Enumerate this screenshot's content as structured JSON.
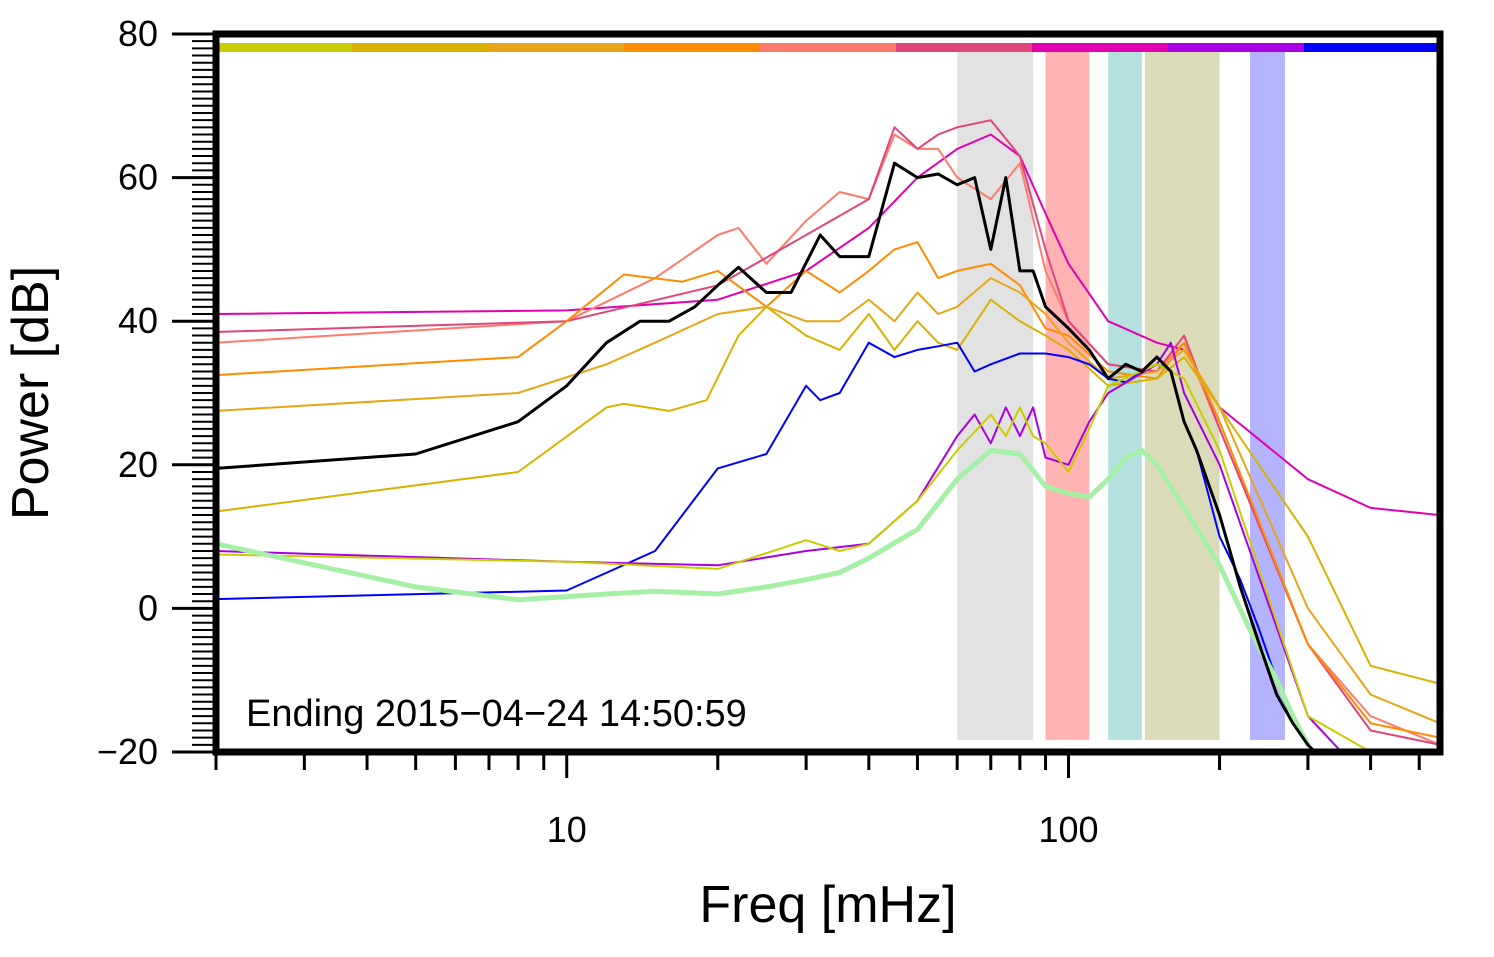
{
  "chart_data": {
    "type": "line",
    "x_scale": "log",
    "xlabel": "Freq [mHz]",
    "ylabel": "Power [dB]",
    "xlim": [
      2,
      550
    ],
    "ylim": [
      -20,
      80
    ],
    "x_ticks": [
      10,
      100
    ],
    "x_tick_labels": [
      "10",
      "100"
    ],
    "y_ticks": [
      -20,
      0,
      20,
      40,
      60,
      80
    ],
    "y_tick_labels": [
      "−20",
      "0",
      "20",
      "40",
      "60",
      "80"
    ],
    "grid": false,
    "legend": "none",
    "annotation": "Ending 2015−04−24 14:50:59",
    "frame_color": "#000000",
    "top_color_bar": [
      "#c9cc00",
      "#d9b100",
      "#e8a517",
      "#ff8c00",
      "#ff7b6b",
      "#e0457b",
      "#e000b0",
      "#a800e0",
      "#0000ff"
    ],
    "bands": [
      {
        "x0": 60,
        "x1": 85,
        "color": "#d3d3d3"
      },
      {
        "x0": 90,
        "x1": 110,
        "color": "#ff8a8a"
      },
      {
        "x0": 120,
        "x1": 140,
        "color": "#8ecfd0"
      },
      {
        "x0": 142,
        "x1": 200,
        "color": "#c8c795"
      },
      {
        "x0": 230,
        "x1": 270,
        "color": "#8a8aff"
      }
    ],
    "series": [
      {
        "color": "#000000",
        "width": 3,
        "x": [
          2,
          5,
          8,
          10,
          12,
          14,
          16,
          18,
          20,
          22,
          25,
          28,
          32,
          35,
          40,
          45,
          50,
          55,
          60,
          65,
          70,
          75,
          80,
          85,
          90,
          100,
          110,
          120,
          130,
          140,
          150,
          160,
          170,
          180,
          200,
          220,
          240,
          260,
          280,
          300,
          310
        ],
        "y": [
          19.5,
          21.5,
          26,
          31,
          37,
          40,
          40,
          42,
          45,
          47.5,
          44,
          44,
          52,
          49,
          49,
          62,
          60,
          60.5,
          59,
          60,
          50,
          60,
          47,
          47,
          42,
          39,
          36,
          32,
          34,
          33,
          35,
          33,
          26,
          22,
          13,
          3,
          -5,
          -12,
          -16,
          -19,
          -20
        ]
      },
      {
        "color": "#e000b0",
        "width": 2,
        "x": [
          2,
          10,
          20,
          30,
          40,
          50,
          60,
          70,
          80,
          90,
          100,
          120,
          150,
          170,
          200,
          300,
          400,
          550
        ],
        "y": [
          41,
          41.5,
          43,
          47,
          53,
          60,
          64,
          66,
          63,
          55,
          48,
          40,
          37,
          36,
          28,
          18,
          14,
          13
        ]
      },
      {
        "color": "#ff7b6b",
        "width": 2,
        "x": [
          2,
          10,
          15,
          20,
          22,
          25,
          30,
          35,
          40,
          45,
          50,
          55,
          60,
          70,
          80,
          90,
          100,
          120,
          150,
          170,
          200,
          300,
          400,
          550
        ],
        "y": [
          37,
          40,
          46,
          52,
          53,
          48,
          54,
          58,
          57,
          66,
          64,
          64,
          60,
          57,
          62,
          47,
          40,
          34,
          33,
          37,
          25,
          -5,
          -15,
          -19
        ]
      },
      {
        "color": "#e0457b",
        "width": 2,
        "x": [
          2,
          10,
          20,
          30,
          40,
          45,
          50,
          55,
          60,
          70,
          80,
          90,
          100,
          120,
          150,
          170,
          200,
          300,
          400,
          550
        ],
        "y": [
          38.5,
          40,
          45,
          52,
          57,
          67,
          64,
          66,
          67,
          68,
          63,
          50,
          40,
          34,
          33,
          38,
          25,
          -5,
          -17,
          -19
        ]
      },
      {
        "color": "#ff8c00",
        "width": 2,
        "x": [
          2,
          8,
          10,
          13,
          17,
          20,
          25,
          30,
          35,
          40,
          45,
          50,
          55,
          60,
          70,
          80,
          90,
          100,
          120,
          150,
          170,
          200,
          300,
          400,
          550
        ],
        "y": [
          32.5,
          35,
          40,
          46.5,
          45.5,
          47,
          42,
          47,
          44,
          47,
          50,
          51,
          46,
          47,
          48,
          45,
          39,
          38,
          33,
          32,
          37,
          26,
          -5,
          -16,
          -18
        ]
      },
      {
        "color": "#e8a517",
        "width": 2,
        "x": [
          2,
          8,
          12,
          15,
          20,
          25,
          30,
          35,
          40,
          45,
          50,
          55,
          60,
          70,
          80,
          90,
          100,
          120,
          150,
          170,
          200,
          300,
          400,
          550
        ],
        "y": [
          27.5,
          30,
          34,
          37,
          41,
          42,
          40,
          40,
          43,
          40,
          44,
          41,
          42,
          46,
          44,
          41,
          37,
          32,
          33,
          36,
          28,
          0,
          -12,
          -16
        ]
      },
      {
        "color": "#d9b100",
        "width": 2,
        "x": [
          2,
          8,
          12,
          13,
          16,
          19,
          22,
          25,
          30,
          35,
          40,
          45,
          50,
          55,
          60,
          70,
          80,
          90,
          100,
          120,
          150,
          170,
          200,
          300,
          400,
          550
        ],
        "y": [
          13.5,
          19,
          28,
          28.5,
          27.5,
          29,
          38,
          42,
          38,
          36,
          41,
          36,
          40,
          37,
          36,
          43,
          40,
          38,
          36,
          31,
          32,
          35,
          28,
          10,
          -8,
          -10.5
        ]
      },
      {
        "color": "#0000ff",
        "width": 2,
        "x": [
          2,
          10,
          15,
          20,
          25,
          30,
          32,
          35,
          40,
          45,
          50,
          55,
          60,
          65,
          70,
          80,
          90,
          100,
          110,
          120,
          130,
          140,
          150,
          160,
          170,
          180,
          200,
          220,
          240,
          260,
          280,
          300,
          310
        ],
        "y": [
          1.3,
          2.5,
          8,
          19.5,
          21.5,
          31,
          29,
          30,
          37,
          35,
          36,
          36.5,
          37,
          33,
          34,
          35.5,
          35.5,
          35,
          34,
          32,
          31.5,
          33,
          34,
          33,
          26,
          22,
          10,
          4,
          -3,
          -10,
          -16,
          -19,
          -20
        ]
      },
      {
        "color": "#a800e0",
        "width": 2,
        "x": [
          2,
          10,
          20,
          30,
          40,
          50,
          60,
          65,
          70,
          75,
          80,
          85,
          90,
          100,
          110,
          120,
          150,
          160,
          170,
          200,
          300,
          350
        ],
        "y": [
          8,
          6.5,
          6,
          8,
          9,
          15,
          24,
          27,
          23,
          28,
          24,
          28,
          21,
          20,
          26,
          30,
          34,
          37,
          30,
          20,
          -15,
          -20
        ]
      },
      {
        "color": "#c9cc00",
        "width": 2,
        "x": [
          2,
          10,
          20,
          30,
          35,
          40,
          50,
          60,
          70,
          75,
          80,
          85,
          90,
          100,
          110,
          120,
          150,
          170,
          200,
          300,
          400
        ],
        "y": [
          7.5,
          6.5,
          5.5,
          9.5,
          8,
          9,
          15,
          22,
          27,
          24,
          28,
          24,
          23,
          19,
          25,
          31,
          34,
          32,
          22,
          -15,
          -20
        ]
      },
      {
        "color": "#a6f0a6",
        "width": 5,
        "x": [
          2,
          5,
          8,
          12,
          15,
          20,
          25,
          30,
          35,
          40,
          50,
          60,
          70,
          80,
          90,
          100,
          110,
          120,
          130,
          140,
          150,
          170,
          200,
          230,
          260,
          280,
          300
        ],
        "y": [
          9,
          3,
          1.2,
          2,
          2.4,
          2,
          3,
          4,
          5,
          7,
          11,
          18,
          22,
          21.5,
          17,
          16,
          15.5,
          18,
          21,
          22,
          20,
          14,
          6,
          -3,
          -10,
          -15,
          -19
        ]
      }
    ]
  }
}
